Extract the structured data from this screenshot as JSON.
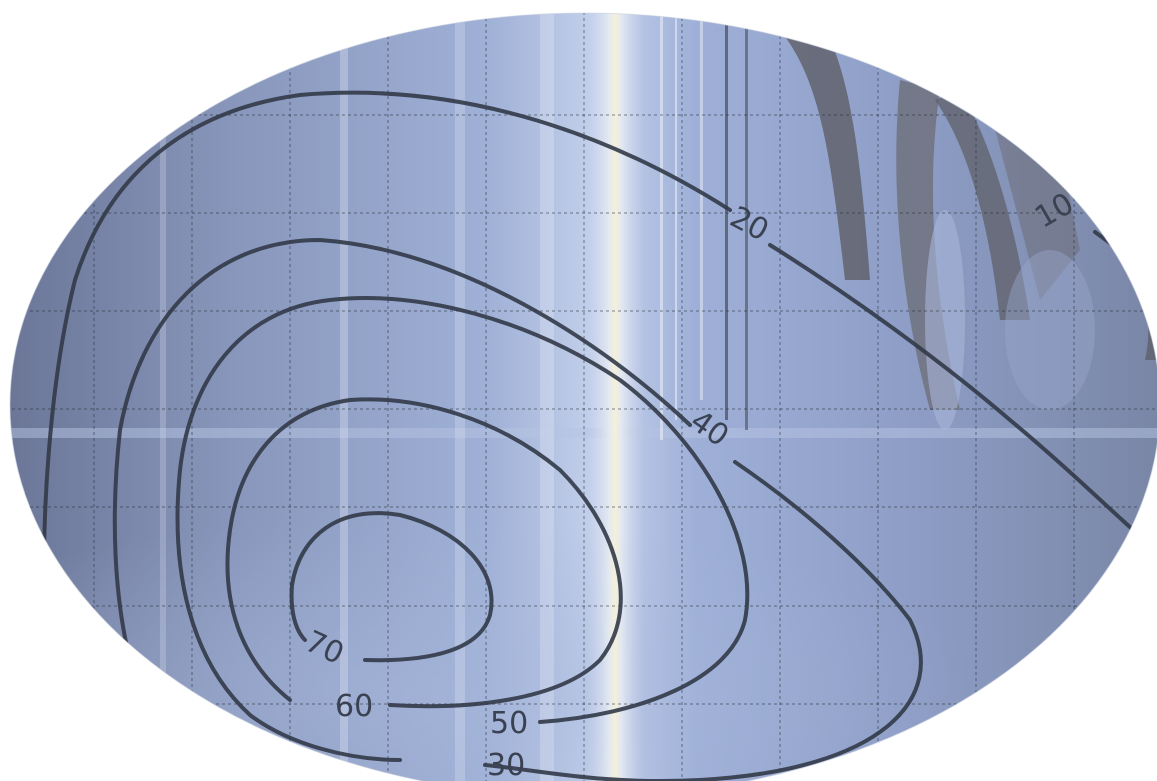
{
  "map": {
    "projection": "mollweide",
    "colors": {
      "background": "#ffffff",
      "field_base": "#8c9cc2",
      "field_dark": "#5f6c8e",
      "field_light": "#c8d4ee",
      "band_highlight": "#f2efdc",
      "contour_line": "#323a48",
      "grid_line": "#222a36"
    },
    "grid": {
      "visible": true,
      "style": "dotted",
      "meridian_count": 11,
      "parallel_count": 6
    },
    "contours": [
      {
        "level": "10"
      },
      {
        "level": "20"
      },
      {
        "level": "30"
      },
      {
        "level": "40"
      },
      {
        "level": "50"
      },
      {
        "level": "60"
      },
      {
        "level": "70"
      }
    ]
  }
}
